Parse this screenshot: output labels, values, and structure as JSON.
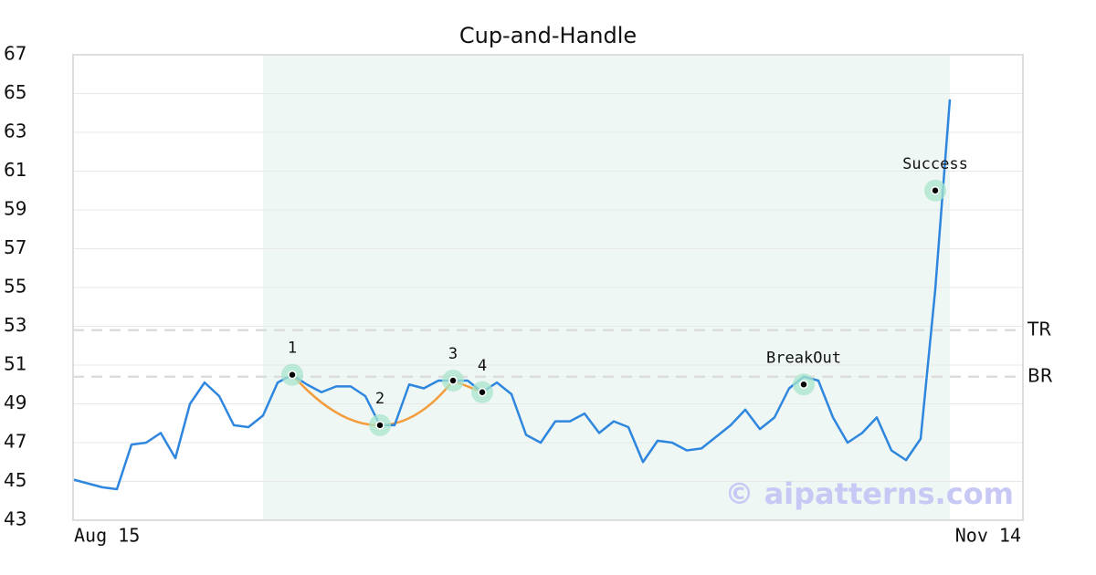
{
  "chart_data": {
    "type": "line",
    "title": "Cup-and-Handle",
    "categories": [
      "Aug 15",
      null,
      null,
      null,
      null,
      null,
      null,
      null,
      null,
      null,
      null,
      null,
      null,
      null,
      null,
      null,
      null,
      null,
      null,
      null,
      null,
      null,
      null,
      null,
      null,
      null,
      null,
      null,
      null,
      null,
      null,
      null,
      null,
      null,
      null,
      null,
      null,
      null,
      null,
      null,
      null,
      null,
      null,
      null,
      null,
      null,
      null,
      null,
      null,
      null,
      null,
      null,
      null,
      null,
      null,
      null,
      null,
      null,
      null,
      null,
      null,
      null,
      null,
      null,
      null,
      "Nov 14"
    ],
    "values": [
      45.1,
      44.9,
      44.7,
      44.6,
      46.9,
      47.0,
      47.5,
      46.2,
      49.0,
      50.1,
      49.4,
      47.9,
      47.8,
      48.4,
      50.1,
      50.5,
      50.0,
      49.6,
      49.9,
      49.9,
      49.4,
      47.9,
      47.9,
      50.0,
      49.8,
      50.2,
      50.2,
      50.2,
      49.6,
      50.1,
      49.5,
      47.4,
      47.0,
      48.1,
      48.1,
      48.5,
      47.5,
      48.1,
      47.8,
      46.0,
      47.1,
      47.0,
      46.6,
      46.7,
      47.3,
      47.9,
      48.7,
      47.7,
      48.3,
      49.8,
      50.4,
      50.2,
      48.3,
      47.0,
      47.5,
      48.3,
      46.6,
      46.1,
      47.2,
      54.9,
      64.7,
      null,
      null,
      null,
      null,
      null
    ],
    "color": "#2e86de",
    "ylim": [
      43,
      67
    ],
    "yticks": [
      43,
      45,
      47,
      49,
      51,
      53,
      55,
      57,
      59,
      61,
      63,
      65,
      67
    ],
    "grid": true,
    "highlight": [
      13,
      60
    ],
    "markers": [
      {
        "label": "1",
        "x": 15,
        "value": 50.5
      },
      {
        "label": "2",
        "x": 21,
        "value": 47.9
      },
      {
        "label": "3",
        "x": 26,
        "value": 50.2
      },
      {
        "label": "4",
        "x": 28,
        "value": 49.6
      },
      {
        "label": "BreakOut",
        "x": 50,
        "value": 50.0
      },
      {
        "label": "Success",
        "x": 59,
        "value": 60.0
      }
    ],
    "levels": [
      {
        "label": "TR",
        "value": 52.8
      },
      {
        "label": "BR",
        "value": 50.4
      }
    ],
    "watermark": "© aipatterns.com"
  }
}
